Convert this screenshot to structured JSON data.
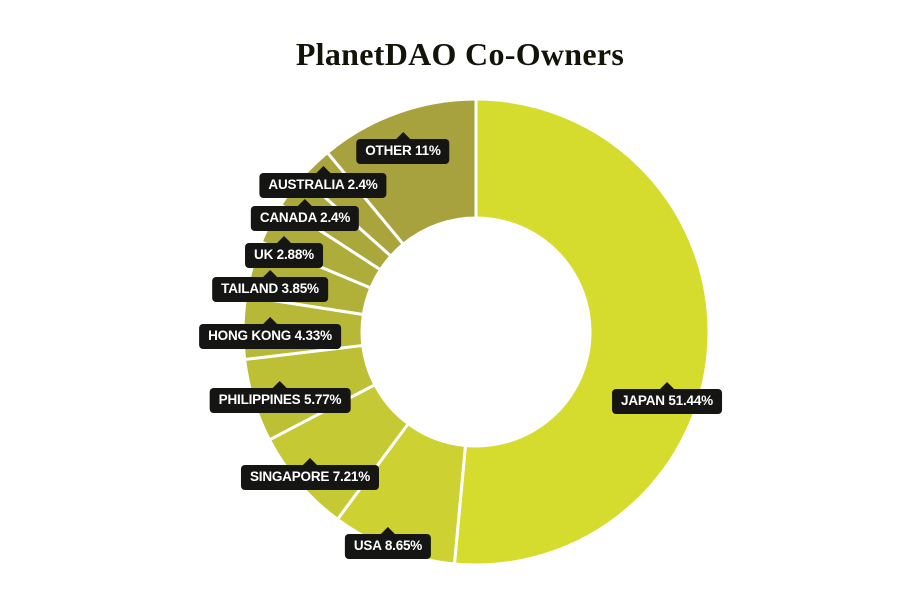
{
  "page": {
    "background": "#ffffff"
  },
  "chart_data": {
    "type": "pie",
    "variant": "donut",
    "title": "PlanetDAO Co-Owners",
    "title_color": "#13130a",
    "legend": "none",
    "start_angle_deg": 0,
    "direction": "clockwise",
    "hole_ratio": 0.49,
    "gap_color": "#ffffff",
    "categories": [
      "JAPAN",
      "USA",
      "SINGAPORE",
      "PHILIPPINES",
      "HONG KONG",
      "TAILAND",
      "UK",
      "CANADA",
      "AUSTRALIA",
      "OTHER"
    ],
    "values": [
      51.44,
      8.65,
      7.21,
      5.77,
      4.33,
      3.85,
      2.88,
      2.4,
      2.4,
      11
    ],
    "slices": [
      {
        "label": "JAPAN",
        "value": 51.44,
        "display": "JAPAN 51.44%",
        "color": "#d6dc2d",
        "label_cx": 667,
        "label_top": 389
      },
      {
        "label": "USA",
        "value": 8.65,
        "display": "USA 8.65%",
        "color": "#cdd131",
        "label_cx": 388,
        "label_top": 534
      },
      {
        "label": "SINGAPORE",
        "value": 7.21,
        "display": "SINGAPORE 7.21%",
        "color": "#c5c933",
        "label_cx": 310,
        "label_top": 465
      },
      {
        "label": "PHILIPPINES",
        "value": 5.77,
        "display": "PHILIPPINES 5.77%",
        "color": "#bdc035",
        "label_cx": 280,
        "label_top": 388
      },
      {
        "label": "HONG KONG",
        "value": 4.33,
        "display": "HONG KONG 4.33%",
        "color": "#b7b837",
        "label_cx": 270,
        "label_top": 324
      },
      {
        "label": "TAILAND",
        "value": 3.85,
        "display": "TAILAND 3.85%",
        "color": "#b1b139",
        "label_cx": 270,
        "label_top": 277
      },
      {
        "label": "UK",
        "value": 2.88,
        "display": "UK 2.88%",
        "color": "#aeac3a",
        "label_cx": 284,
        "label_top": 243
      },
      {
        "label": "CANADA",
        "value": 2.4,
        "display": "CANADA 2.4%",
        "color": "#aba83b",
        "label_cx": 305,
        "label_top": 206
      },
      {
        "label": "AUSTRALIA",
        "value": 2.4,
        "display": "AUSTRALIA 2.4%",
        "color": "#a9a43c",
        "label_cx": 323,
        "label_top": 173
      },
      {
        "label": "OTHER",
        "value": 11.0,
        "display": "OTHER 11%",
        "color": "#a8a23e",
        "label_cx": 403,
        "label_top": 139
      }
    ],
    "label_style": {
      "bg": "#151514",
      "text_color": "#ffffff"
    }
  }
}
